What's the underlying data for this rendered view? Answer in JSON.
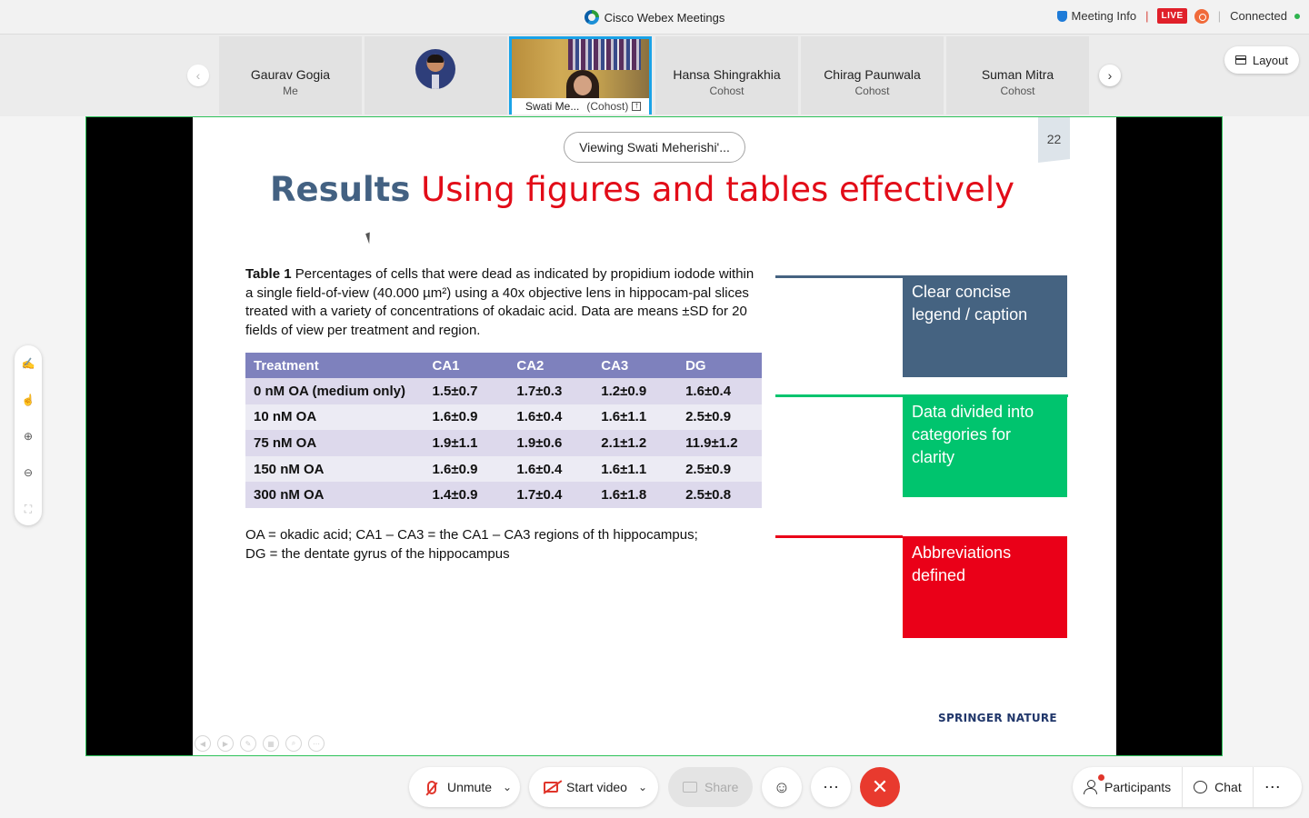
{
  "window": {
    "title": "Cisco Webex Meetings"
  },
  "topbar": {
    "meeting_info": "Meeting Info",
    "live": "LIVE",
    "status": "Connected"
  },
  "participants": [
    {
      "name": "Gaurav Gogia",
      "role": "Me"
    },
    {
      "name": "",
      "role": ""
    },
    {
      "name": "Swati Me...",
      "role": "(Cohost)"
    },
    {
      "name": "Hansa Shingrakhia",
      "role": "Cohost"
    },
    {
      "name": "Chirag Paunwala",
      "role": "Cohost"
    },
    {
      "name": "Suman Mitra",
      "role": "Cohost"
    }
  ],
  "layout_button": "Layout",
  "stage": {
    "viewing_label": "Viewing Swati Meherishi'...",
    "page_number": "22"
  },
  "slide": {
    "title_strong": "Results",
    "title_rest": "Using figures and tables effectively",
    "caption_label": "Table 1",
    "caption_text": "Percentages of cells that were dead as indicated by propidium iodode within a single field-of-view (40.000 µm²) using a 40x objective lens in hippocam-pal slices treated with a variety of concentrations of okadaic acid. Data are means ±SD for 20 fields of view per treatment and region.",
    "table": {
      "headers": [
        "Treatment",
        "CA1",
        "CA2",
        "CA3",
        "DG"
      ],
      "rows": [
        [
          "0 nM OA (medium only)",
          "1.5±0.7",
          "1.7±0.3",
          "1.2±0.9",
          "1.6±0.4"
        ],
        [
          "10 nM OA",
          "1.6±0.9",
          "1.6±0.4",
          "1.6±1.1",
          "2.5±0.9"
        ],
        [
          "75 nM OA",
          "1.9±1.1",
          "1.9±0.6",
          "2.1±1.2",
          "11.9±1.2"
        ],
        [
          "150 nM OA",
          "1.6±0.9",
          "1.6±0.4",
          "1.6±1.1",
          "2.5±0.9"
        ],
        [
          "300 nM OA",
          "1.4±0.9",
          "1.7±0.4",
          "1.6±1.8",
          "2.5±0.8"
        ]
      ]
    },
    "abbrev_line1": "OA = okadic acid; CA1 – CA3 = the CA1 – CA3 regions of th hippocampus;",
    "abbrev_line2": "DG = the dentate gyrus of the hippocampus",
    "callouts": [
      {
        "text": "Clear concise legend / caption",
        "color": "#456381"
      },
      {
        "text": "Data divided into categories for clarity",
        "color": "#00c46e"
      },
      {
        "text": "Abbreviations defined",
        "color": "#ea0018"
      }
    ],
    "logo": "SPRINGER NATURE"
  },
  "controls": {
    "unmute": "Unmute",
    "start_video": "Start video",
    "share": "Share",
    "participants": "Participants",
    "chat": "Chat"
  },
  "colors": {
    "live_red": "#e0202a",
    "active_tile_border": "#1aa3e8",
    "stage_border": "#2ec25a",
    "end_call": "#e83a2e",
    "table_header": "#7e81bd"
  },
  "icons": {
    "tool_rail": [
      "annotate-icon",
      "pointer-icon",
      "zoom-in-icon",
      "zoom-out-icon",
      "fit-screen-icon"
    ]
  }
}
